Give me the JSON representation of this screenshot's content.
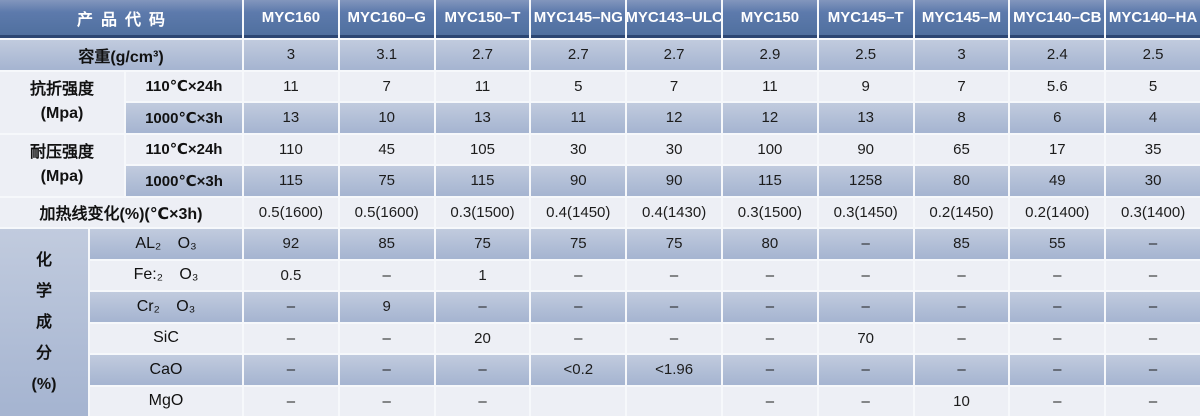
{
  "colors": {
    "header_blue": "#50709f",
    "header_blue_light": "#8296bd",
    "header_border": "#2c4672",
    "row_blue_top": "#c1cbde",
    "row_blue_bottom": "#a6b5d1",
    "row_light": "#edeff5",
    "gridline": "#f6f8fb",
    "header_text": "#ffffff",
    "body_text": "#1c1c1c"
  },
  "table": {
    "corner_label": "产品代码",
    "columns": [
      "MYC160",
      "MYC160–G",
      "MYC150–T",
      "MYC145–NG",
      "MYC143–ULC",
      "MYC150",
      "MYC145–T",
      "MYC145–M",
      "MYC140–CB",
      "MYC140–HA"
    ],
    "sections": [
      {
        "id": "density",
        "type": "single",
        "shade": "blue",
        "label": "容重(g/cm³)",
        "values": [
          "3",
          "3.1",
          "2.7",
          "2.7",
          "2.7",
          "2.9",
          "2.5",
          "3",
          "2.4",
          "2.5"
        ]
      },
      {
        "id": "flexural_strength",
        "type": "group",
        "label": [
          "抗折强度",
          "(Mpa)"
        ],
        "rows": [
          {
            "id": "flexural_110c_24h",
            "sub": "110℃×24h",
            "shade": "light",
            "values": [
              "11",
              "7",
              "11",
              "5",
              "7",
              "11",
              "9",
              "7",
              "5.6",
              "5"
            ]
          },
          {
            "id": "flexural_1000c_3h",
            "sub": "1000℃×3h",
            "shade": "blue",
            "values": [
              "13",
              "10",
              "13",
              "11",
              "12",
              "12",
              "13",
              "8",
              "6",
              "4"
            ]
          }
        ]
      },
      {
        "id": "compressive_strength",
        "type": "group",
        "label": [
          "耐压强度",
          "(Mpa)"
        ],
        "rows": [
          {
            "id": "compressive_110c_24h",
            "sub": "110℃×24h",
            "shade": "light",
            "values": [
              "110",
              "45",
              "105",
              "30",
              "30",
              "100",
              "90",
              "65",
              "17",
              "35"
            ]
          },
          {
            "id": "compressive_1000c_3h",
            "sub": "1000℃×3h",
            "shade": "blue",
            "values": [
              "115",
              "75",
              "115",
              "90",
              "90",
              "115",
              "1258",
              "80",
              "49",
              "30"
            ]
          }
        ]
      },
      {
        "id": "linear_change",
        "type": "single",
        "shade": "light",
        "label": "加热线变化(%)(℃×3h)",
        "values": [
          "0.5(1600)",
          "0.5(1600)",
          "0.3(1500)",
          "0.4(1450)",
          "0.4(1430)",
          "0.3(1500)",
          "0.3(1450)",
          "0.2(1450)",
          "0.2(1400)",
          "0.3(1400)"
        ]
      },
      {
        "id": "chemical_composition",
        "type": "vgroup",
        "label": [
          "化",
          "学",
          "成",
          "分",
          "(%)"
        ],
        "rows": [
          {
            "id": "al2o3",
            "sub": "AL₂ O₃",
            "shade": "blue",
            "values": [
              "92",
              "85",
              "75",
              "75",
              "75",
              "80",
              "–",
              "85",
              "55",
              "–"
            ]
          },
          {
            "id": "fe2o3",
            "sub": "Fe:₂ O₃",
            "shade": "light",
            "values": [
              "0.5",
              "–",
              "1",
              "–",
              "–",
              "–",
              "–",
              "–",
              "–",
              "–"
            ]
          },
          {
            "id": "cr2o3",
            "sub": "Cr₂ O₃",
            "shade": "blue",
            "values": [
              "–",
              "9",
              "–",
              "–",
              "–",
              "–",
              "–",
              "–",
              "–",
              "–"
            ]
          },
          {
            "id": "sic",
            "sub": "SiC",
            "shade": "light",
            "values": [
              "–",
              "–",
              "20",
              "–",
              "–",
              "–",
              "70",
              "–",
              "–",
              "–"
            ]
          },
          {
            "id": "cao",
            "sub": "CaO",
            "shade": "blue",
            "values": [
              "–",
              "–",
              "–",
              "<0.2",
              "<1.96",
              "–",
              "–",
              "–",
              "–",
              "–"
            ]
          },
          {
            "id": "mgo",
            "sub": "MgO",
            "shade": "light",
            "values": [
              "–",
              "–",
              "–",
              "",
              "",
              "–",
              "–",
              "10",
              "–",
              "–"
            ]
          }
        ]
      }
    ]
  }
}
